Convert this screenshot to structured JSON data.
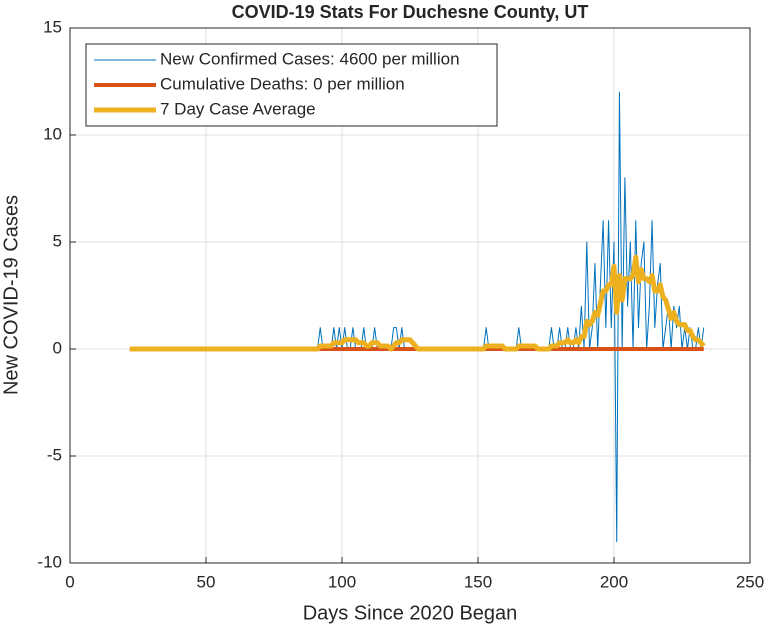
{
  "chart_data": {
    "type": "line",
    "title": "COVID-19 Stats For Duchesne County, UT",
    "x_label": "Days Since 2020 Began",
    "y_label": "New COVID-19 Cases",
    "xlim": [
      0,
      250
    ],
    "xticks": [
      0,
      50,
      100,
      150,
      200,
      250
    ],
    "ylim": [
      -10,
      15
    ],
    "yticks": [
      -10,
      -5,
      0,
      5,
      10,
      15
    ],
    "grid": true,
    "legend_location": "northwest",
    "x": [
      22,
      23,
      24,
      25,
      26,
      27,
      28,
      29,
      30,
      31,
      32,
      33,
      34,
      35,
      36,
      37,
      38,
      39,
      40,
      41,
      42,
      43,
      44,
      45,
      46,
      47,
      48,
      49,
      50,
      51,
      52,
      53,
      54,
      55,
      56,
      57,
      58,
      59,
      60,
      61,
      62,
      63,
      64,
      65,
      66,
      67,
      68,
      69,
      70,
      71,
      72,
      73,
      74,
      75,
      76,
      77,
      78,
      79,
      80,
      81,
      82,
      83,
      84,
      85,
      86,
      87,
      88,
      89,
      90,
      91,
      92,
      93,
      94,
      95,
      96,
      97,
      98,
      99,
      100,
      101,
      102,
      103,
      104,
      105,
      106,
      107,
      108,
      109,
      110,
      111,
      112,
      113,
      114,
      115,
      116,
      117,
      118,
      119,
      120,
      121,
      122,
      123,
      124,
      125,
      126,
      127,
      128,
      129,
      130,
      131,
      132,
      133,
      134,
      135,
      136,
      137,
      138,
      139,
      140,
      141,
      142,
      143,
      144,
      145,
      146,
      147,
      148,
      149,
      150,
      151,
      152,
      153,
      154,
      155,
      156,
      157,
      158,
      159,
      160,
      161,
      162,
      163,
      164,
      165,
      166,
      167,
      168,
      169,
      170,
      171,
      172,
      173,
      174,
      175,
      176,
      177,
      178,
      179,
      180,
      181,
      182,
      183,
      184,
      185,
      186,
      187,
      188,
      189,
      190,
      191,
      192,
      193,
      194,
      195,
      196,
      197,
      198,
      199,
      200,
      201,
      202,
      203,
      204,
      205,
      206,
      207,
      208,
      209,
      210,
      211,
      212,
      213,
      214,
      215,
      216,
      217,
      218,
      219,
      220,
      221,
      222,
      223,
      224,
      225,
      226,
      227,
      228,
      229,
      230,
      231,
      232,
      233
    ],
    "series": [
      {
        "name": "New Confirmed Cases: 4600 per million",
        "color": "#0072BD",
        "width": 1,
        "values": [
          0,
          0,
          0,
          0,
          0,
          0,
          0,
          0,
          0,
          0,
          0,
          0,
          0,
          0,
          0,
          0,
          0,
          0,
          0,
          0,
          0,
          0,
          0,
          0,
          0,
          0,
          0,
          0,
          0,
          0,
          0,
          0,
          0,
          0,
          0,
          0,
          0,
          0,
          0,
          0,
          0,
          0,
          0,
          0,
          0,
          0,
          0,
          0,
          0,
          0,
          0,
          0,
          0,
          0,
          0,
          0,
          0,
          0,
          0,
          0,
          0,
          0,
          0,
          0,
          0,
          0,
          0,
          0,
          0,
          0,
          1,
          0,
          0,
          0,
          0,
          1,
          0,
          1,
          0,
          1,
          0,
          0,
          1,
          0,
          0,
          0,
          1,
          0,
          0,
          0,
          1,
          0,
          0,
          0,
          0,
          0,
          0,
          1,
          1,
          0,
          1,
          0,
          0,
          0,
          0,
          0,
          0,
          0,
          0,
          0,
          0,
          0,
          0,
          0,
          0,
          0,
          0,
          0,
          0,
          0,
          0,
          0,
          0,
          0,
          0,
          0,
          0,
          0,
          0,
          0,
          0,
          1,
          0,
          0,
          0,
          0,
          0,
          0,
          0,
          0,
          0,
          0,
          0,
          1,
          0,
          0,
          0,
          0,
          0,
          0,
          0,
          0,
          0,
          0,
          0,
          1,
          0,
          0,
          1,
          0,
          0,
          1,
          0,
          0,
          1,
          0,
          2,
          0,
          5,
          0,
          1,
          4,
          0,
          3,
          6,
          1,
          6,
          1,
          5,
          -9,
          12,
          0,
          8,
          2,
          5,
          0,
          6,
          1,
          4,
          5,
          0,
          2,
          6,
          1,
          3,
          4,
          0,
          1,
          2,
          0,
          2,
          1,
          2,
          0,
          1,
          0,
          1,
          0,
          0,
          1,
          0,
          1
        ]
      },
      {
        "name": "Cumulative Deaths: 0 per million",
        "color": "#D95319",
        "width": 4,
        "values": [
          0,
          0,
          0,
          0,
          0,
          0,
          0,
          0,
          0,
          0,
          0,
          0,
          0,
          0,
          0,
          0,
          0,
          0,
          0,
          0,
          0,
          0,
          0,
          0,
          0,
          0,
          0,
          0,
          0,
          0,
          0,
          0,
          0,
          0,
          0,
          0,
          0,
          0,
          0,
          0,
          0,
          0,
          0,
          0,
          0,
          0,
          0,
          0,
          0,
          0,
          0,
          0,
          0,
          0,
          0,
          0,
          0,
          0,
          0,
          0,
          0,
          0,
          0,
          0,
          0,
          0,
          0,
          0,
          0,
          0,
          0,
          0,
          0,
          0,
          0,
          0,
          0,
          0,
          0,
          0,
          0,
          0,
          0,
          0,
          0,
          0,
          0,
          0,
          0,
          0,
          0,
          0,
          0,
          0,
          0,
          0,
          0,
          0,
          0,
          0,
          0,
          0,
          0,
          0,
          0,
          0,
          0,
          0,
          0,
          0,
          0,
          0,
          0,
          0,
          0,
          0,
          0,
          0,
          0,
          0,
          0,
          0,
          0,
          0,
          0,
          0,
          0,
          0,
          0,
          0,
          0,
          0,
          0,
          0,
          0,
          0,
          0,
          0,
          0,
          0,
          0,
          0,
          0,
          0,
          0,
          0,
          0,
          0,
          0,
          0,
          0,
          0,
          0,
          0,
          0,
          0,
          0,
          0,
          0,
          0,
          0,
          0,
          0,
          0,
          0,
          0,
          0,
          0,
          0,
          0,
          0,
          0,
          0,
          0,
          0,
          0,
          0,
          0,
          0,
          0,
          0,
          0,
          0,
          0,
          0,
          0,
          0,
          0,
          0,
          0,
          0,
          0,
          0,
          0,
          0,
          0,
          0,
          0,
          0,
          0,
          0,
          0,
          0,
          0,
          0,
          0,
          0,
          0,
          0,
          0,
          0,
          0
        ]
      },
      {
        "name": "7 Day Case Average",
        "color": "#EDB120",
        "width": 5,
        "values": [
          0,
          0,
          0,
          0,
          0,
          0,
          0,
          0,
          0,
          0,
          0,
          0,
          0,
          0,
          0,
          0,
          0,
          0,
          0,
          0,
          0,
          0,
          0,
          0,
          0,
          0,
          0,
          0,
          0,
          0,
          0,
          0,
          0,
          0,
          0,
          0,
          0,
          0,
          0,
          0,
          0,
          0,
          0,
          0,
          0,
          0,
          0,
          0,
          0,
          0,
          0,
          0,
          0,
          0,
          0,
          0,
          0,
          0,
          0,
          0,
          0,
          0,
          0,
          0,
          0,
          0,
          0,
          0,
          0,
          0,
          0.14,
          0.14,
          0.14,
          0.14,
          0.14,
          0.29,
          0.29,
          0.29,
          0.29,
          0.43,
          0.43,
          0.43,
          0.43,
          0.43,
          0.29,
          0.29,
          0.29,
          0.14,
          0.14,
          0.29,
          0.29,
          0.29,
          0.14,
          0.14,
          0.14,
          0.14,
          0,
          0.14,
          0.29,
          0.29,
          0.43,
          0.43,
          0.43,
          0.43,
          0.29,
          0.14,
          0,
          0,
          0,
          0,
          0,
          0,
          0,
          0,
          0,
          0,
          0,
          0,
          0,
          0,
          0,
          0,
          0,
          0,
          0,
          0,
          0,
          0,
          0,
          0,
          0,
          0.14,
          0.14,
          0.14,
          0.14,
          0.14,
          0.14,
          0.14,
          0,
          0,
          0,
          0,
          0,
          0.14,
          0.14,
          0.14,
          0.14,
          0.14,
          0.14,
          0.14,
          0,
          0,
          0,
          0,
          0,
          0.14,
          0.14,
          0.14,
          0.29,
          0.29,
          0.29,
          0.43,
          0.29,
          0.29,
          0.43,
          0.29,
          0.57,
          0.57,
          1.29,
          1.14,
          1.29,
          1.71,
          1.57,
          2.14,
          2.71,
          2.71,
          3,
          3,
          3.86,
          1.71,
          3.43,
          2.29,
          3.29,
          3.29,
          3.29,
          3.43,
          4.29,
          3.14,
          3.71,
          3.29,
          3.29,
          3.14,
          3.43,
          2.71,
          2.71,
          3,
          2.43,
          2.29,
          1.86,
          1.43,
          1.71,
          1.29,
          1.14,
          1.14,
          1.14,
          0.86,
          0.86,
          0.57,
          0.43,
          0.43,
          0.29,
          0.14
        ]
      }
    ]
  }
}
